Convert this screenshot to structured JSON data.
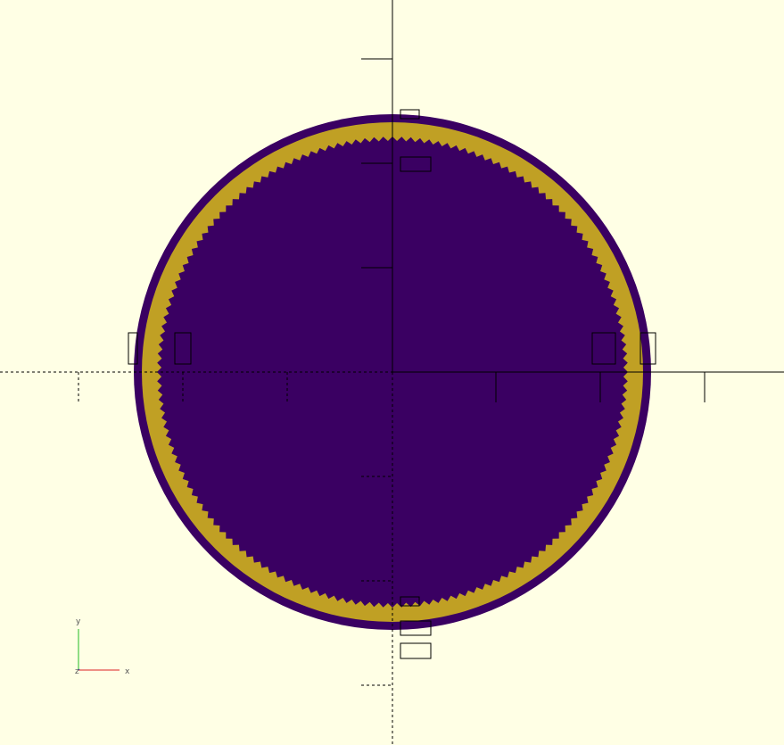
{
  "viewport": {
    "background_color": "#ffffe5"
  },
  "model": {
    "outer_ring_color": "#3a0062",
    "middle_ring_color": "#c0a024",
    "inner_disc_color": "#3a0062"
  },
  "axes": {
    "line_color": "#000000"
  },
  "axis_indicator": {
    "x_label": "x",
    "y_label": "y",
    "z_label": "z",
    "x_color": "#dd2222",
    "y_color": "#22bb22",
    "z_color": "#2222dd",
    "label_color": "#555555"
  }
}
